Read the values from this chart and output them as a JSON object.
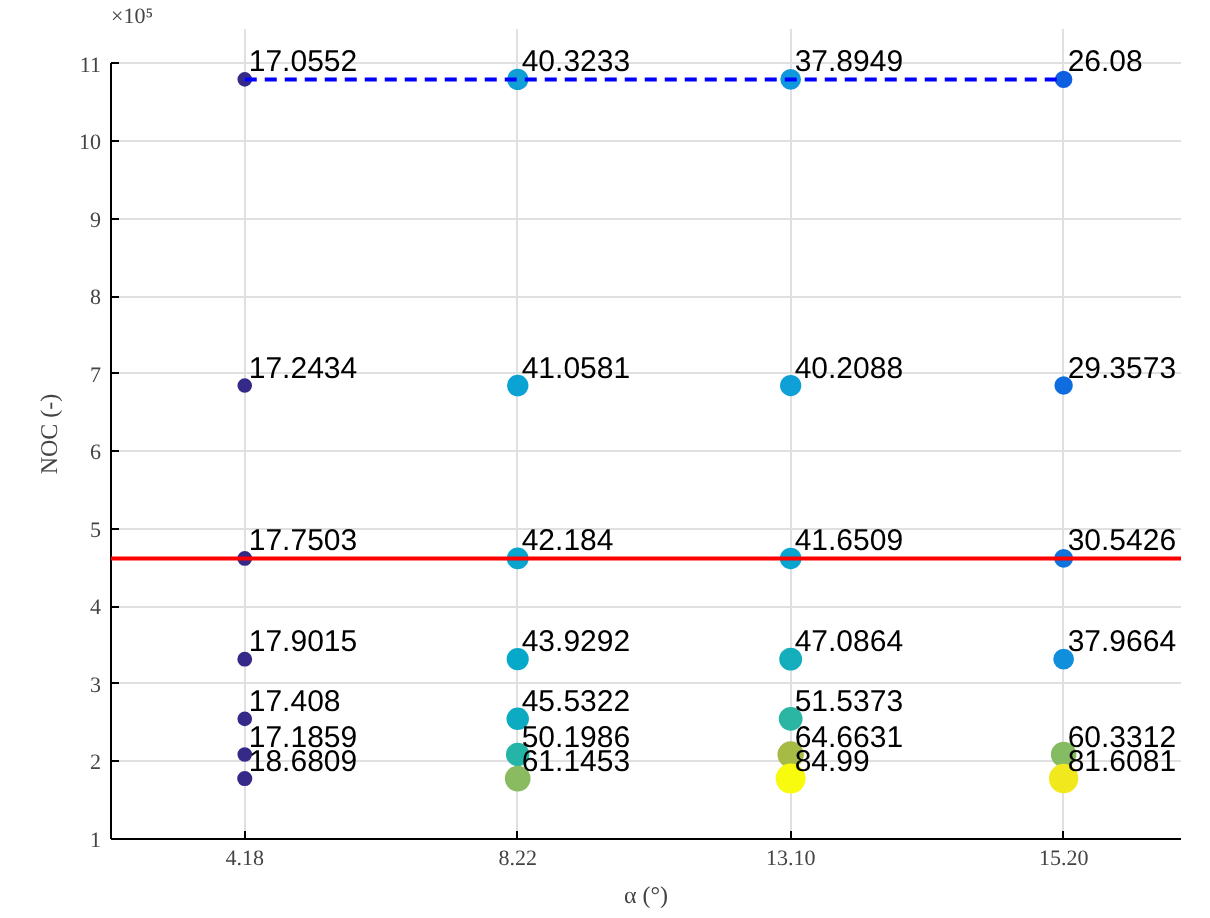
{
  "chart_data": {
    "type": "bubble",
    "xlabel": "α (°)",
    "ylabel": "NOC (-)",
    "categories": [
      "4.18",
      "8.22",
      "13.10",
      "15.20"
    ],
    "ylim": [
      1,
      11
    ],
    "yticks": [
      1,
      2,
      3,
      4,
      5,
      6,
      7,
      8,
      9,
      10,
      11
    ],
    "grid": true,
    "annotations": [
      "×10⁵"
    ],
    "ref_lines": [
      {
        "axis": "y",
        "value": 4.62,
        "label": null,
        "color": "#ff0000"
      }
    ],
    "series": [
      {
        "x": [
          "4.18",
          "4.18",
          "4.18",
          "4.18",
          "4.18",
          "4.18",
          "4.18",
          "8.22",
          "8.22",
          "8.22",
          "8.22",
          "8.22",
          "8.22",
          "8.22",
          "13.10",
          "13.10",
          "13.10",
          "13.10",
          "13.10",
          "13.10",
          "13.10",
          "15.20",
          "15.20",
          "15.20",
          "15.20",
          "15.20",
          "15.20"
        ],
        "values": [
          10.8,
          6.85,
          4.62,
          3.32,
          2.55,
          2.09,
          1.78,
          10.8,
          6.85,
          4.62,
          3.32,
          2.55,
          2.09,
          1.78,
          10.8,
          6.85,
          4.62,
          3.32,
          2.55,
          2.09,
          1.78,
          10.8,
          6.85,
          4.62,
          3.32,
          2.09,
          1.78
        ],
        "sizes": [
          17.0552,
          17.2434,
          17.7503,
          17.9015,
          17.408,
          17.1859,
          18.6809,
          40.3233,
          41.0581,
          42.184,
          43.9292,
          45.5322,
          50.1986,
          61.1453,
          37.8949,
          40.2088,
          41.6509,
          47.0864,
          51.5373,
          64.6631,
          84.99,
          26.08,
          29.3573,
          30.5426,
          37.9664,
          60.3312,
          81.6081
        ],
        "value_labels": [
          "17.0552",
          "17.2434",
          "17.7503",
          "17.9015",
          "17.408",
          "17.1859",
          "18.6809",
          "40.3233",
          "41.0581",
          "42.184",
          "43.9292",
          "45.5322",
          "50.1986",
          "61.1453",
          "37.8949",
          "40.2088",
          "41.6509",
          "47.0864",
          "51.5373",
          "64.6631",
          "84.99",
          "26.08",
          "29.3573",
          "30.5426",
          "37.9664",
          "60.3312",
          "81.6081"
        ],
        "colors": [
          "#352a87",
          "#352a87",
          "#352a87",
          "#352a87",
          "#352a87",
          "#352a87",
          "#352a87",
          "#0f9fd6",
          "#0ba3d3",
          "#08a6cf",
          "#06a9c9",
          "#0cabc2",
          "#25b5a8",
          "#8abb60",
          "#0f98dc",
          "#0ea0d6",
          "#0aa4d1",
          "#14aebc",
          "#2bb6a3",
          "#a5bb45",
          "#f9fb0e",
          "#0f5fe0",
          "#0f6edf",
          "#1173dc",
          "#0f8fdc",
          "#84bb63",
          "#f2e81e"
        ]
      },
      {
        "type": "line",
        "values": [
          10.8,
          10.8,
          10.8,
          10.8
        ],
        "color": "#0000ff",
        "line_style": "dashed",
        "marker": "none"
      }
    ]
  }
}
